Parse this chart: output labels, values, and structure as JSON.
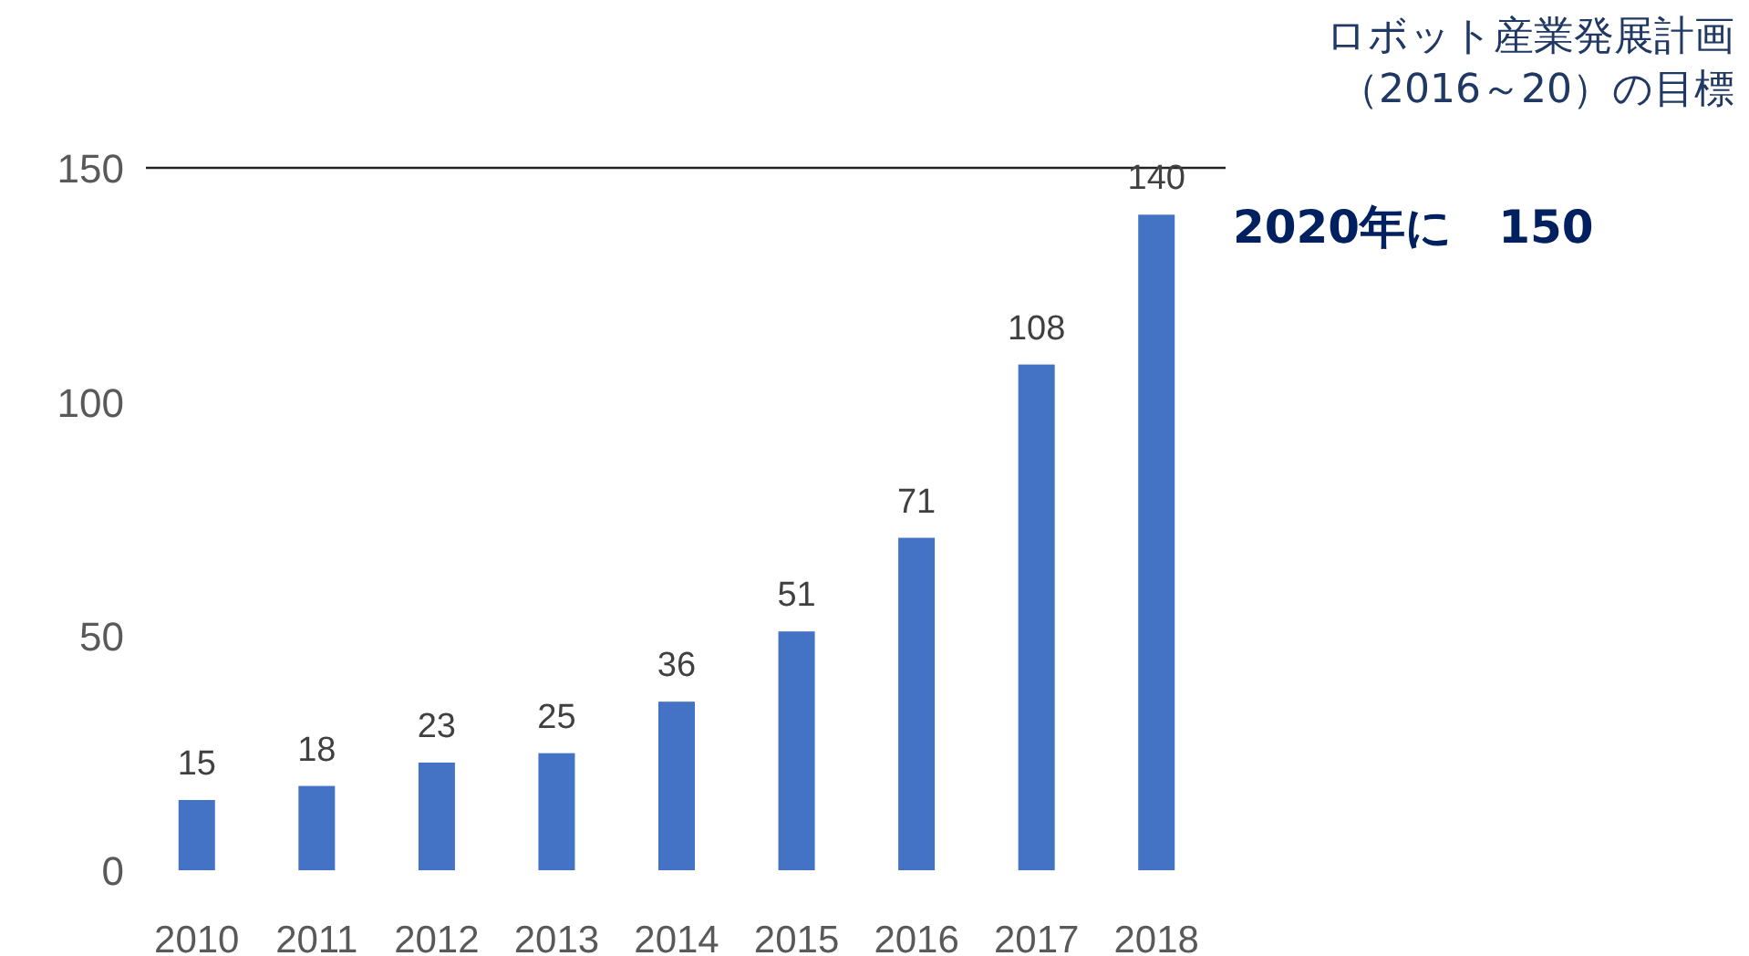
{
  "chart_data": {
    "type": "bar",
    "categories": [
      "2010",
      "2011",
      "2012",
      "2013",
      "2014",
      "2015",
      "2016",
      "2017",
      "2018"
    ],
    "values": [
      15,
      18,
      23,
      25,
      36,
      51,
      71,
      108,
      140
    ],
    "color": "#4472c4",
    "ylim": [
      0,
      150
    ],
    "yticks": [
      0,
      50,
      100,
      150
    ],
    "data_labels": true,
    "ref_lines": [
      {
        "axis": "y",
        "value": 150,
        "label": "ロボット産業発展計画（2016～20）の目標",
        "color": "#222222"
      }
    ],
    "annotations": [
      "2020年に　150"
    ]
  }
}
